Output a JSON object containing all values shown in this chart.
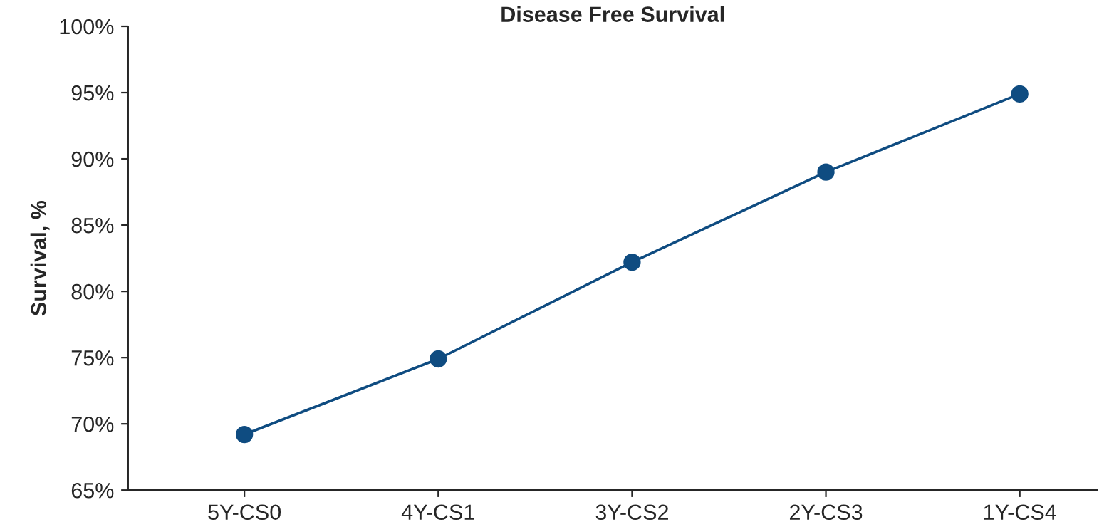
{
  "chart_data": {
    "type": "line",
    "title": "Disease Free Survival",
    "ylabel": "Survival, %",
    "categories": [
      "5Y-CS0",
      "4Y-CS1",
      "3Y-CS2",
      "2Y-CS3",
      "1Y-CS4"
    ],
    "series": [
      {
        "color": "#0f4c81",
        "values": [
          69.2,
          74.9,
          82.2,
          89.0,
          94.9
        ]
      }
    ],
    "ylim": [
      65,
      100
    ],
    "yticks": [
      {
        "value": 65,
        "label": "65%"
      },
      {
        "value": 70,
        "label": "70%"
      },
      {
        "value": 75,
        "label": "75%"
      },
      {
        "value": 80,
        "label": "80%"
      },
      {
        "value": 85,
        "label": "85%"
      },
      {
        "value": 90,
        "label": "90%"
      },
      {
        "value": 95,
        "label": "95%"
      },
      {
        "value": 100,
        "label": "100%"
      }
    ],
    "marker": "circle",
    "line_style": "solid",
    "grid": false,
    "legend": false
  }
}
